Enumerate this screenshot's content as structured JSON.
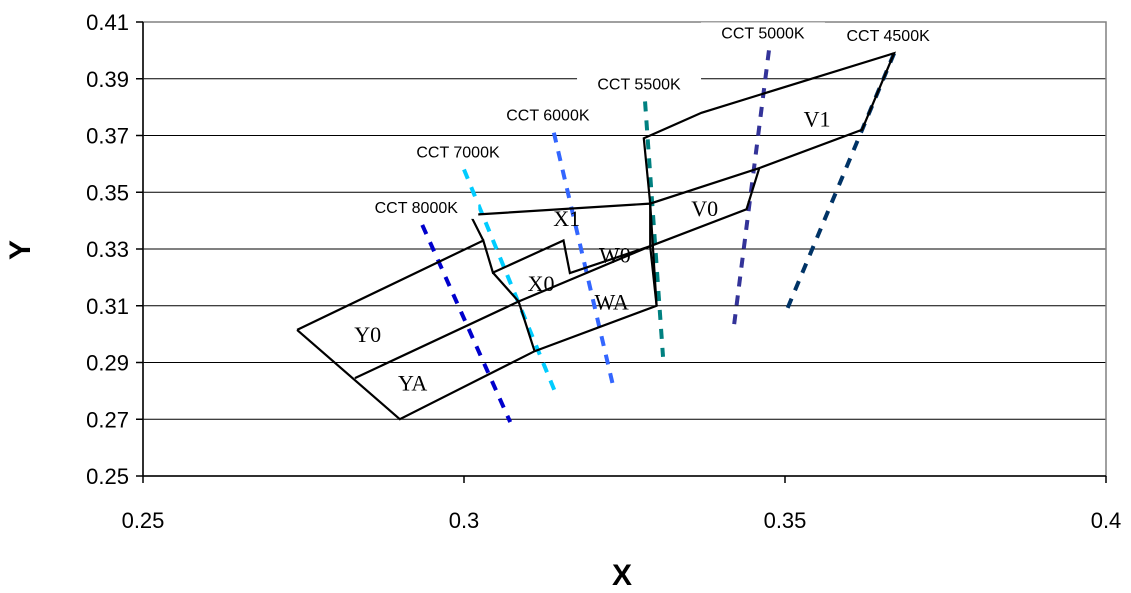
{
  "chart_data": {
    "type": "scatter",
    "xlabel": "X",
    "ylabel": "Y",
    "xlim": [
      0.25,
      0.4
    ],
    "ylim": [
      0.25,
      0.41
    ],
    "xticks": [
      "0.25",
      "0.3",
      "0.35",
      "0.4"
    ],
    "yticks": [
      "0.25",
      "0.27",
      "0.29",
      "0.31",
      "0.33",
      "0.35",
      "0.37",
      "0.39",
      "0.41"
    ],
    "xtick_values": [
      0.25,
      0.3,
      0.35,
      0.4
    ],
    "ytick_values": [
      0.25,
      0.27,
      0.29,
      0.31,
      0.33,
      0.35,
      0.37,
      0.39,
      0.41
    ],
    "grid": "horizontal",
    "cct_lines": [
      {
        "name": "CCT 8000K",
        "color": "#0000cc",
        "points": [
          [
            0.2935,
            0.3385
          ],
          [
            0.3072,
            0.269
          ]
        ]
      },
      {
        "name": "CCT 7000K",
        "color": "#00ccff",
        "points": [
          [
            0.3,
            0.358
          ],
          [
            0.3143,
            0.279
          ]
        ]
      },
      {
        "name": "CCT 6000K",
        "color": "#3366ff",
        "points": [
          [
            0.314,
            0.371
          ],
          [
            0.3232,
            0.282
          ]
        ]
      },
      {
        "name": "CCT 5500K",
        "color": "#008080",
        "points": [
          [
            0.3282,
            0.382
          ],
          [
            0.331,
            0.292
          ]
        ]
      },
      {
        "name": "CCT 5000K",
        "color": "#333399",
        "points": [
          [
            0.3475,
            0.4
          ],
          [
            0.342,
            0.302
          ]
        ]
      },
      {
        "name": "CCT 4500K",
        "color": "#003366",
        "points": [
          [
            0.367,
            0.399
          ],
          [
            0.35,
            0.307
          ]
        ]
      }
    ],
    "bin_outlines": [
      [
        [
          0.274,
          0.3015
        ],
        [
          0.303,
          0.333
        ],
        [
          0.3045,
          0.3217
        ],
        [
          0.3155,
          0.333
        ],
        [
          0.3165,
          0.3215
        ],
        [
          0.329,
          0.331
        ],
        [
          0.344,
          0.344
        ],
        [
          0.346,
          0.3585
        ],
        [
          0.329,
          0.346
        ],
        [
          0.328,
          0.369
        ],
        [
          0.337,
          0.378
        ],
        [
          0.367,
          0.399
        ],
        [
          0.362,
          0.372
        ],
        [
          0.346,
          0.3585
        ]
      ],
      [
        [
          0.274,
          0.3015
        ],
        [
          0.29,
          0.27
        ],
        [
          0.311,
          0.294
        ],
        [
          0.33,
          0.31
        ],
        [
          0.329,
          0.346
        ],
        [
          0.301,
          0.342
        ],
        [
          0.303,
          0.333
        ]
      ]
    ],
    "bin_segments": [
      [
        [
          0.283,
          0.2845
        ],
        [
          0.3085,
          0.3115
        ],
        [
          0.3045,
          0.3217
        ]
      ],
      [
        [
          0.3085,
          0.3115
        ],
        [
          0.311,
          0.294
        ]
      ],
      [
        [
          0.3085,
          0.3115
        ],
        [
          0.329,
          0.331
        ]
      ],
      [
        [
          0.329,
          0.331
        ],
        [
          0.33,
          0.31
        ]
      ],
      [
        [
          0.329,
          0.346
        ],
        [
          0.329,
          0.331
        ]
      ]
    ],
    "bins": [
      {
        "name": "Y0",
        "x": 0.285,
        "y": 0.3
      },
      {
        "name": "YA",
        "x": 0.292,
        "y": 0.283
      },
      {
        "name": "X0",
        "x": 0.312,
        "y": 0.318
      },
      {
        "name": "X1",
        "x": 0.316,
        "y": 0.341
      },
      {
        "name": "W0",
        "x": 0.3235,
        "y": 0.328
      },
      {
        "name": "WA",
        "x": 0.323,
        "y": 0.3115
      },
      {
        "name": "V0",
        "x": 0.3375,
        "y": 0.3445
      },
      {
        "name": "V1",
        "x": 0.355,
        "y": 0.376
      }
    ]
  }
}
